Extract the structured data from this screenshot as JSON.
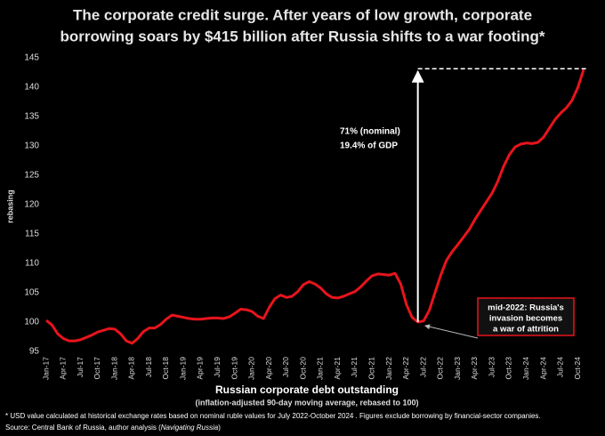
{
  "chart_data": {
    "type": "line",
    "title_lines": [
      "The corporate credit surge.  After years of low growth, corporate",
      "borrowing soars by $415 billion after Russia shifts to a war footing*"
    ],
    "y_label": "rebasing",
    "x_label": "Russian corporate debt outstanding",
    "x_sublabel": "(inflation-adjusted 90-day moving average, rebased to 100)",
    "annotation_lines": [
      "71% (nominal)",
      "19.4% of GDP"
    ],
    "callout_lines": [
      "mid-2022: Russia's",
      "invasion becomes",
      "a war of attrition"
    ],
    "footnote": "* USD value calculated at historical exchange rates based on nominal ruble values for July 2022-October 2024 .  Figures exclude  borrowing by financial-sector companies.",
    "source_parts": [
      "Source: Central Bank of Russia, author analysis (",
      "Navigating Russia",
      ")"
    ],
    "categories": [
      "Jan-17",
      null,
      null,
      "Apr-17",
      null,
      null,
      "Jul-17",
      null,
      null,
      "Oct-17",
      null,
      null,
      "Jan-18",
      null,
      null,
      "Apr-18",
      null,
      null,
      "Jul-18",
      null,
      null,
      "Oct-18",
      null,
      null,
      "Jan-19",
      null,
      null,
      "Apr-19",
      null,
      null,
      "Jul-19",
      null,
      null,
      "Oct-19",
      null,
      null,
      "Jan-20",
      null,
      null,
      "Apr-20",
      null,
      null,
      "Jul-20",
      null,
      null,
      "Oct-20",
      null,
      null,
      "Jan-21",
      null,
      null,
      "Apr-21",
      null,
      null,
      "Jul-21",
      null,
      null,
      "Oct-21",
      null,
      null,
      "Jan-22",
      null,
      null,
      "Apr-22",
      null,
      null,
      "Jul-22",
      null,
      null,
      "Oct-22",
      null,
      null,
      "Jan-23",
      null,
      null,
      "Apr-23",
      null,
      null,
      "Jul-23",
      null,
      null,
      "Oct-23",
      null,
      null,
      "Jan-24",
      null,
      null,
      "Apr-24",
      null,
      null,
      "Jul-24",
      null,
      null,
      "Oct-24",
      null
    ],
    "series": [
      {
        "name": "Russian corporate debt outstanding",
        "color": "#e8141c",
        "values": [
          100.3,
          99.5,
          98,
          97.2,
          96.8,
          96.8,
          97,
          97.4,
          97.8,
          98.3,
          98.6,
          98.9,
          98.8,
          98,
          96.8,
          96.4,
          97.2,
          98.4,
          99,
          99,
          99.6,
          100.5,
          101.2,
          101,
          100.8,
          100.6,
          100.5,
          100.5,
          100.6,
          100.7,
          100.7,
          100.6,
          100.9,
          101.5,
          102.2,
          102.1,
          101.8,
          101,
          100.6,
          102.5,
          104,
          104.6,
          104.2,
          104.4,
          105.2,
          106.4,
          106.9,
          106.5,
          105.8,
          104.8,
          104.2,
          104.1,
          104.4,
          104.8,
          105.2,
          106,
          107,
          107.9,
          108.2,
          108.1,
          108,
          108.3,
          106.5,
          103,
          100.8,
          100,
          100.2,
          102,
          105,
          108,
          110.5,
          112,
          113.2,
          114.5,
          115.8,
          117.5,
          119,
          120.5,
          122,
          124,
          126.5,
          128.5,
          129.8,
          130.3,
          130.5,
          130.4,
          130.6,
          131.5,
          133,
          134.5,
          135.6,
          136.5,
          137.8,
          140,
          143
        ]
      }
    ],
    "ylim": [
      95,
      145
    ],
    "yticks": [
      95,
      100,
      105,
      110,
      115,
      120,
      125,
      130,
      135,
      140,
      145
    ],
    "grid": false
  }
}
